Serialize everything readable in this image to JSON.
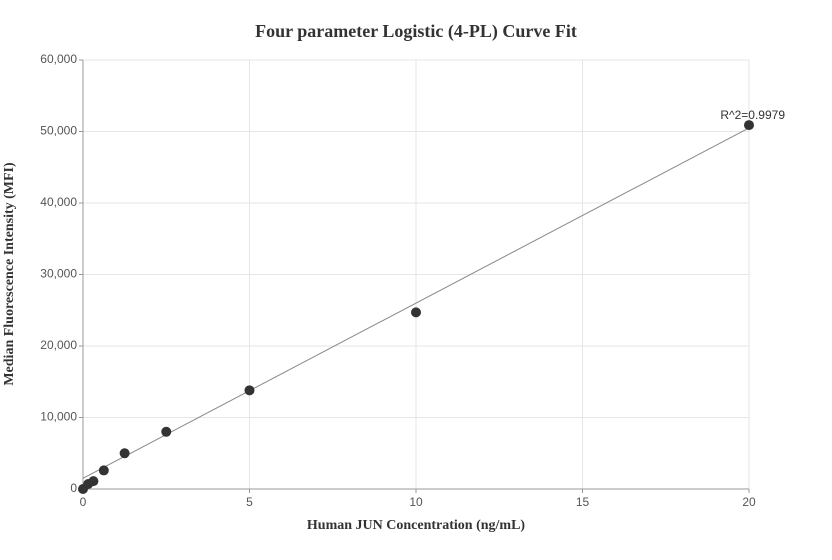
{
  "chart_data": {
    "type": "scatter",
    "title": "Four parameter Logistic (4-PL) Curve Fit",
    "x_label": "Human JUN Concentration (ng/mL)",
    "y_label": "Median Fluorescence Intensity (MFI)",
    "annotation": "R^2=0.9979",
    "series": [
      {
        "color": "#333333",
        "x": [
          0,
          0.156,
          0.3125,
          0.625,
          1.25,
          2.5,
          5,
          10,
          20
        ],
        "values": [
          0,
          700,
          1100,
          2600,
          5000,
          8000,
          13800,
          24700,
          50900
        ]
      }
    ],
    "fit": {
      "color": "#888888",
      "x": [
        0,
        20
      ],
      "values": [
        1500,
        50500
      ]
    },
    "xlim": [
      0,
      20
    ],
    "xticks": [
      0,
      5,
      10,
      15,
      20
    ],
    "ylim": [
      0,
      60000
    ],
    "yticks": [
      0,
      {
        "value": 10000,
        "label": "10,000"
      },
      {
        "value": 20000,
        "label": "20,000"
      },
      {
        "value": 30000,
        "label": "30,000"
      },
      {
        "value": 40000,
        "label": "40,000"
      },
      {
        "value": 50000,
        "label": "50,000"
      },
      {
        "value": 60000,
        "label": "60,000"
      }
    ],
    "grid": true
  }
}
